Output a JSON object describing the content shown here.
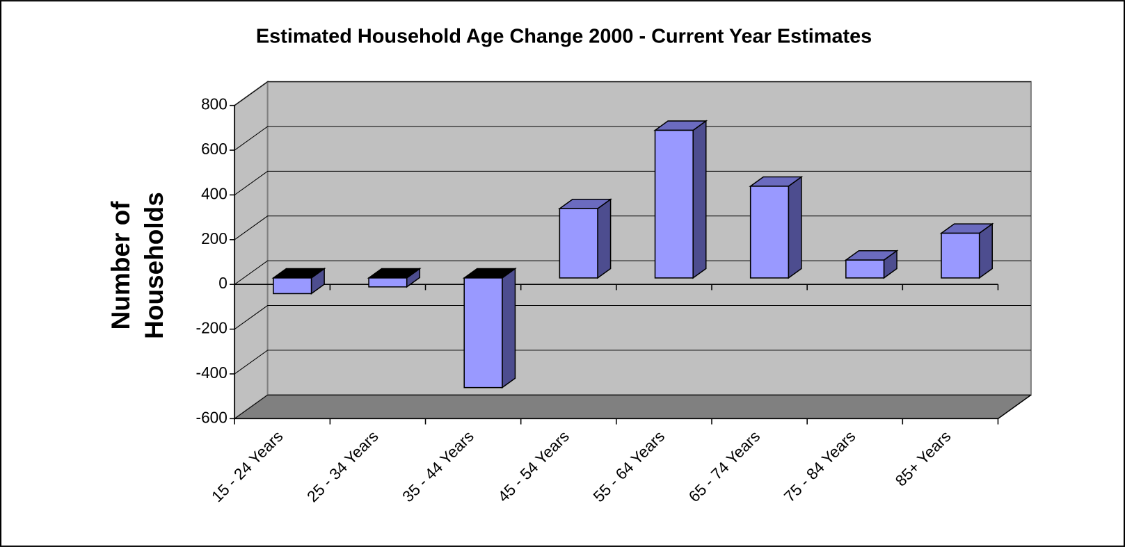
{
  "chart_data": {
    "type": "bar3d",
    "title": "Estimated Household Age Change 2000 - Current Year Estimates",
    "y_label": "Number of Households",
    "categories": [
      "15 - 24 Years",
      "25 - 34 Years",
      "35 - 44 Years",
      "45 - 54 Years",
      "55 - 64 Years",
      "65 - 74 Years",
      "75 - 84 Years",
      "85+ Years"
    ],
    "values": [
      -70,
      -40,
      -490,
      310,
      660,
      410,
      80,
      200
    ],
    "color": "#9999ff",
    "ylim": [
      -600,
      800
    ],
    "yticks": [
      -600,
      -400,
      -200,
      0,
      200,
      400,
      600,
      800
    ],
    "grid": true
  }
}
